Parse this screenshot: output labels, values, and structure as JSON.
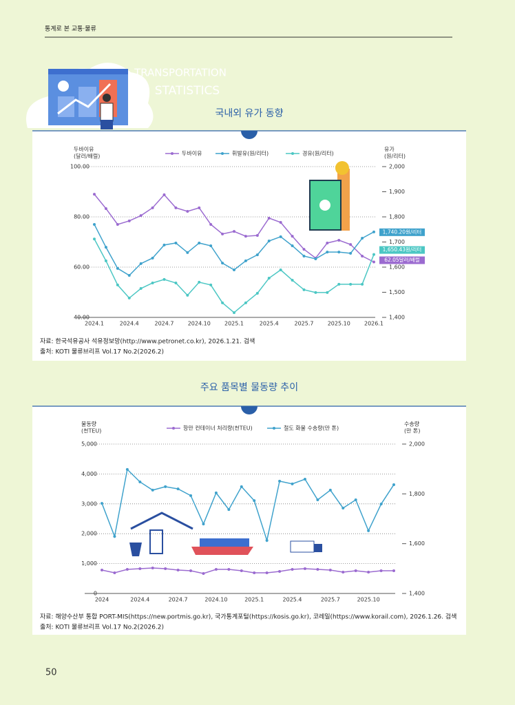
{
  "header": {
    "section": "통계로 본 교통·물류",
    "deco_line1": "TRANSPORTATION",
    "deco_line2": "STATISTICS"
  },
  "page_number": "50",
  "chart_data": [
    {
      "type": "line",
      "title": "국내외 유가 동향",
      "y_label": [
        "두바이유",
        "(달러/배럴)"
      ],
      "y2_label": [
        "유가",
        "(원/리터)"
      ],
      "categories": [
        "2024.1",
        null,
        null,
        "2024.4",
        null,
        null,
        "2024.7",
        null,
        null,
        "2024.10",
        null,
        null,
        "2025.1",
        null,
        null,
        "2025.4",
        null,
        null,
        "2025.7",
        null,
        null,
        "2025.10",
        null,
        null,
        "2026.1"
      ],
      "series": [
        {
          "name": "두바이유",
          "color": "#9b6bd0",
          "axis": "y",
          "values": [
            89.0,
            83.3,
            77.0,
            78.4,
            80.5,
            83.6,
            88.8,
            83.6,
            82.2,
            83.6,
            77.0,
            73.2,
            74.2,
            72.3,
            72.6,
            79.5,
            77.8,
            72.3,
            67.1,
            63.6,
            69.6,
            70.7,
            69.0,
            64.4,
            62.05
          ],
          "value_labels": [
            null,
            null,
            null,
            null,
            null,
            null,
            null,
            null,
            null,
            null,
            null,
            null,
            null,
            null,
            null,
            null,
            null,
            null,
            null,
            null,
            null,
            null,
            null,
            null,
            "62.05달러/배럴"
          ]
        },
        {
          "name": "휘발유(원/리터)",
          "color": "#3fa2cc",
          "axis": "y2",
          "values": [
            1770,
            1679,
            1595,
            1567,
            1614,
            1636,
            1688,
            1696,
            1658,
            1696,
            1685,
            1616,
            1589,
            1625,
            1649,
            1704,
            1721,
            1685,
            1644,
            1633,
            1660,
            1660,
            1655,
            1715,
            1740.2
          ],
          "value_labels": [
            null,
            null,
            null,
            null,
            null,
            null,
            null,
            null,
            null,
            null,
            null,
            null,
            null,
            null,
            null,
            null,
            null,
            null,
            null,
            null,
            null,
            null,
            null,
            null,
            "1,740.20원/리터"
          ]
        },
        {
          "name": "경유(원/리터)",
          "color": "#4cc7c4",
          "axis": "y2",
          "values": [
            1712,
            1625,
            1529,
            1477,
            1515,
            1537,
            1551,
            1537,
            1488,
            1540,
            1529,
            1458,
            1419,
            1458,
            1496,
            1556,
            1589,
            1548,
            1510,
            1499,
            1499,
            1532,
            1532,
            1532,
            1650.43
          ],
          "value_labels": [
            null,
            null,
            null,
            null,
            null,
            null,
            null,
            null,
            null,
            null,
            null,
            null,
            null,
            null,
            null,
            null,
            null,
            null,
            null,
            null,
            null,
            null,
            null,
            null,
            "1,650.43원/리터"
          ]
        }
      ],
      "ylim": [
        40,
        100
      ],
      "yticks": [
        {
          "value": 40,
          "label": "40.00"
        },
        {
          "value": 60,
          "label": "60.00"
        },
        {
          "value": 80,
          "label": "80.00"
        },
        {
          "value": 100,
          "label": "100.00"
        }
      ],
      "y2lim": [
        1400,
        2000
      ],
      "y2ticks": [
        {
          "value": 1400,
          "label": "1,400"
        },
        {
          "value": 1500,
          "label": "1,500"
        },
        {
          "value": 1600,
          "label": "1,600"
        },
        {
          "value": 1700,
          "label": "1,700"
        },
        {
          "value": 1800,
          "label": "1,800"
        },
        {
          "value": 1900,
          "label": "1,900"
        },
        {
          "value": 2000,
          "label": "2,000"
        }
      ],
      "grid": true,
      "source": "자료: 한국석유공사 석유정보망(http://www.petronet.co.kr), 2026.1.21. 검색",
      "origin": "출처: KOTI 물류브리프 Vol.17 No.2(2026.2)"
    },
    {
      "type": "line",
      "title": "주요 품목별 물동량 추이",
      "y_label": [
        "물동량",
        "(천TEU)"
      ],
      "y2_label": [
        "수송량",
        "(만 톤)"
      ],
      "categories": [
        "2024",
        null,
        null,
        "2024.4",
        null,
        null,
        "2024.7",
        null,
        null,
        "2024.10",
        null,
        null,
        "2025.1",
        null,
        null,
        "2025.4",
        null,
        null,
        "2025.7",
        null,
        null,
        "2025.10",
        null,
        null
      ],
      "series": [
        {
          "name": "항만 컨테이너 처리량(천TEU)",
          "color": "#9b6bd0",
          "axis": "y",
          "values": [
            783,
            691,
            806,
            829,
            853,
            829,
            783,
            760,
            668,
            806,
            806,
            760,
            691,
            691,
            737,
            806,
            829,
            806,
            783,
            714,
            760,
            714,
            760,
            760
          ]
        },
        {
          "name": "철도 화물 수송량(만 톤)",
          "color": "#3fa2cc",
          "axis": "y2",
          "values": [
            1762,
            1629,
            1898,
            1848,
            1815,
            1829,
            1820,
            1793,
            1679,
            1804,
            1737,
            1829,
            1773,
            1613,
            1851,
            1840,
            1859,
            1776,
            1815,
            1743,
            1776,
            1652,
            1759,
            1837
          ]
        }
      ],
      "ylim": [
        0,
        5000
      ],
      "yticks": [
        0,
        {
          "value": 1000,
          "label": "1,000"
        },
        {
          "value": 2000,
          "label": "2,000"
        },
        {
          "value": 3000,
          "label": "3,000"
        },
        {
          "value": 4000,
          "label": "4,000"
        },
        {
          "value": 5000,
          "label": "5,000"
        }
      ],
      "y2lim": [
        1400,
        2000
      ],
      "y2ticks": [
        {
          "value": 1400,
          "label": "1,400"
        },
        {
          "value": 1600,
          "label": "1,600"
        },
        {
          "value": 1800,
          "label": "1,800"
        },
        {
          "value": 2000,
          "label": "2,000"
        }
      ],
      "grid": true,
      "source": "자료: 해양수산부 통합 PORT-MIS(https://new.portmis.go.kr), 국가통계포털(https://kosis.go.kr), 코레일(https://www.korail.com), 2026.1.26. 검색",
      "origin": "출처: KOTI 물류브리프 Vol.17 No.2(2026.2)"
    }
  ]
}
